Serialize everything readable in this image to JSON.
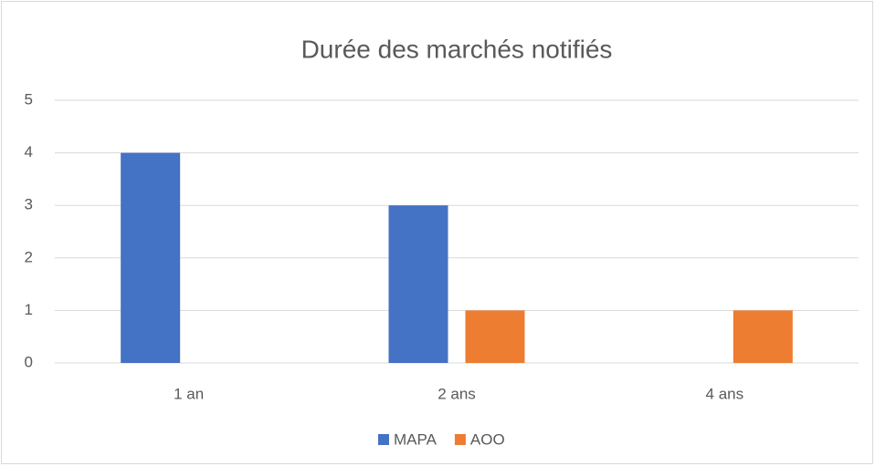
{
  "chart_data": {
    "type": "bar",
    "title": "Durée des marchés notifiés",
    "categories": [
      "1 an",
      "2 ans",
      "4 ans"
    ],
    "series": [
      {
        "name": "MAPA",
        "color": "#4472c4",
        "values": [
          4,
          3,
          0
        ]
      },
      {
        "name": "AOO",
        "color": "#ed7d31",
        "values": [
          0,
          1,
          1
        ]
      }
    ],
    "ylim": [
      0,
      5
    ],
    "yticks": [
      0,
      1,
      2,
      3,
      4,
      5
    ],
    "grid": true,
    "legend": "bottom"
  }
}
